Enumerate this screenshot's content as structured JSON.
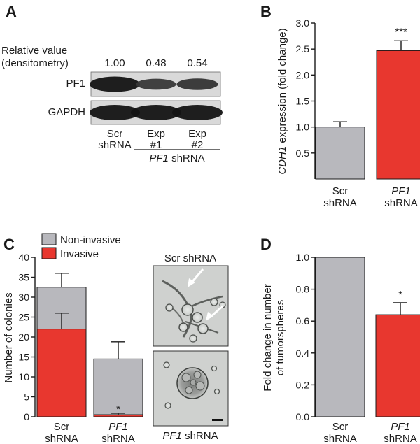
{
  "panel_labels": {
    "a": "A",
    "b": "B",
    "c": "C",
    "d": "D"
  },
  "colors": {
    "gray": "#b8b8bd",
    "red": "#e8372f",
    "outline": "#1a1a1a"
  },
  "panel_a": {
    "relative_label_line1": "Relative value",
    "relative_label_line2": "(densitometry)",
    "values": [
      "1.00",
      "0.48",
      "0.54"
    ],
    "protein_labels": [
      "PF1",
      "GAPDH"
    ],
    "lanes": [
      {
        "line1": "Scr",
        "line2": "shRNA"
      },
      {
        "line1": "Exp",
        "line2": "#1"
      },
      {
        "line1": "Exp",
        "line2": "#2"
      }
    ],
    "group_label_gene": "PF1",
    "group_label_suffix": " shRNA",
    "band_intensity": [
      [
        1.0,
        0.48,
        0.54
      ],
      [
        1.0,
        1.0,
        1.0
      ]
    ]
  },
  "panel_c_images": {
    "top_caption": "Scr shRNA",
    "bottom_caption_gene": "PF1",
    "bottom_caption_suffix": " shRNA"
  },
  "chart_data": [
    {
      "id": "B",
      "type": "bar",
      "ylabel_gene": "CDH1",
      "ylabel_suffix": " expression (fold change)",
      "categories": [
        {
          "line1": "Scr",
          "line2": "shRNA",
          "italic": false
        },
        {
          "line1": "PF1",
          "line2": "shRNA",
          "italic": true
        }
      ],
      "values": [
        1.0,
        2.47
      ],
      "errors": [
        0.1,
        0.19
      ],
      "colors": [
        "#b8b8bd",
        "#e8372f"
      ],
      "ylim": [
        0,
        3.0
      ],
      "yticks": [
        "0.5",
        "1.0",
        "1.5",
        "2.0",
        "2.5",
        "3.0"
      ],
      "annotations": [
        "",
        "***"
      ]
    },
    {
      "id": "C",
      "type": "bar",
      "stacked": true,
      "ylabel": "Number of colonies",
      "legend": [
        "Non-invasive",
        "Invasive"
      ],
      "categories": [
        {
          "line1": "Scr",
          "line2": "shRNA",
          "italic": false
        },
        {
          "line1": "PF1",
          "line2": "shRNA",
          "italic": true
        }
      ],
      "series": [
        {
          "name": "Invasive",
          "values": [
            22,
            0.5
          ],
          "errors": [
            4,
            0.4
          ]
        },
        {
          "name": "Non-invasive",
          "values": [
            10.5,
            14
          ],
          "errors": [
            3.5,
            4.3
          ]
        }
      ],
      "ylim": [
        0,
        40
      ],
      "yticks": [
        "0",
        "5",
        "10",
        "15",
        "20",
        "25",
        "30",
        "35",
        "40"
      ],
      "annotations": [
        "",
        "*"
      ]
    },
    {
      "id": "D",
      "type": "bar",
      "ylabel_line1": "Fold change in number",
      "ylabel_line2": "of tumorspheres",
      "categories": [
        {
          "line1": "Scr",
          "line2": "shRNA",
          "italic": false
        },
        {
          "line1": "PF1",
          "line2": "shRNA",
          "italic": true
        }
      ],
      "values": [
        1.0,
        0.64
      ],
      "errors": [
        0,
        0.075
      ],
      "colors": [
        "#b8b8bd",
        "#e8372f"
      ],
      "ylim": [
        0,
        1.0
      ],
      "yticks": [
        "0.0",
        "0.2",
        "0.4",
        "0.6",
        "0.8",
        "1.0"
      ],
      "annotations": [
        "",
        "*"
      ]
    }
  ]
}
